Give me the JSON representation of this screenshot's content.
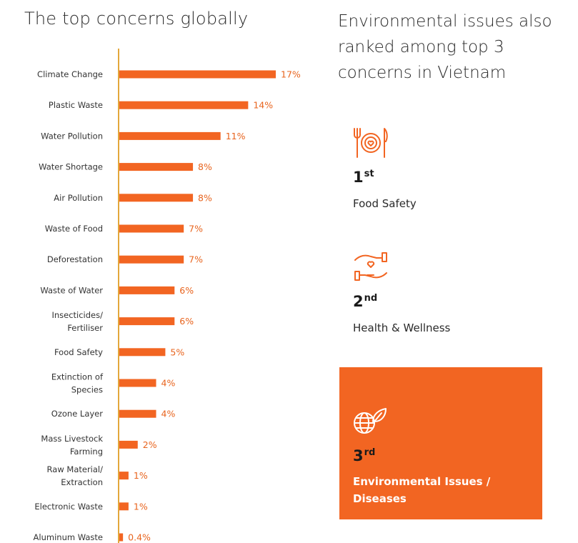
{
  "left_title": "The top concerns globally",
  "right_title": "Environmental issues also ranked among top 3 concerns in Vietnam",
  "colors": {
    "accent": "#f26522",
    "axis": "#e3a73c",
    "text": "#2a2a2a"
  },
  "chart_data": {
    "type": "bar",
    "orientation": "horizontal",
    "title": "The top concerns globally",
    "categories": [
      [
        "Climate Change"
      ],
      [
        "Plastic Waste"
      ],
      [
        "Water Pollution"
      ],
      [
        "Water Shortage"
      ],
      [
        "Air Pollution"
      ],
      [
        "Waste of Food"
      ],
      [
        "Deforestation"
      ],
      [
        "Waste of Water"
      ],
      [
        "Insecticides/",
        "Fertiliser"
      ],
      [
        "Food Safety"
      ],
      [
        "Extinction of",
        "Species"
      ],
      [
        "Ozone Layer"
      ],
      [
        "Mass Livestock",
        "Farming"
      ],
      [
        "Raw Material/",
        "Extraction"
      ],
      [
        "Electronic Waste"
      ],
      [
        "Aluminum Waste"
      ]
    ],
    "values": [
      17,
      14,
      11,
      8,
      8,
      7,
      7,
      6,
      6,
      5,
      4,
      4,
      2,
      1,
      1,
      0.4
    ],
    "value_labels": [
      "17%",
      "14%",
      "11%",
      "8%",
      "8%",
      "7%",
      "7%",
      "6%",
      "6%",
      "5%",
      "4%",
      "4%",
      "2%",
      "1%",
      "1%",
      "0.4%"
    ],
    "unit": "%",
    "grid": false,
    "legend": "none"
  },
  "ranks": [
    {
      "number": "1",
      "suffix": "st",
      "label": "Food Safety",
      "icon": "food-safety-icon"
    },
    {
      "number": "2",
      "suffix": "nd",
      "label": "Health & Wellness",
      "icon": "hand-heart-icon"
    },
    {
      "number": "3",
      "suffix": "rd",
      "label": "Environmental Issues / Diseases",
      "icon": "globe-leaf-icon"
    }
  ]
}
